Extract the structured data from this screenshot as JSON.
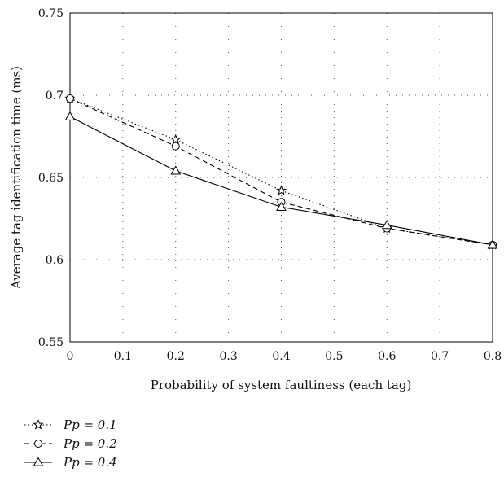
{
  "chart_data": {
    "type": "line",
    "xlabel": "Probability of system faultiness (each tag)",
    "ylabel": "Average tag identification time  (ms)",
    "xlim": [
      0,
      0.8
    ],
    "ylim": [
      0.55,
      0.75
    ],
    "x_ticks": [
      "0",
      "0.1",
      "0.2",
      "0.3",
      "0.4",
      "0.5",
      "0.6",
      "0.7",
      "0.8"
    ],
    "y_ticks": [
      "0.55",
      "0.6",
      "0.65",
      "0.7",
      "0.75"
    ],
    "grid": true,
    "legend_position": "below",
    "x": [
      0,
      0.2,
      0.4,
      0.6,
      0.8
    ],
    "series": [
      {
        "name": "Pp = 0.1",
        "marker": "star",
        "line_style": "dotted",
        "values": [
          0.698,
          0.673,
          0.642,
          0.619,
          0.609
        ]
      },
      {
        "name": "Pp = 0.2",
        "marker": "circle",
        "line_style": "dashed",
        "values": [
          0.698,
          0.669,
          0.635,
          0.619,
          0.609
        ]
      },
      {
        "name": "Pp = 0.4",
        "marker": "triangle",
        "line_style": "solid",
        "values": [
          0.687,
          0.654,
          0.632,
          0.621,
          0.609
        ]
      }
    ]
  }
}
